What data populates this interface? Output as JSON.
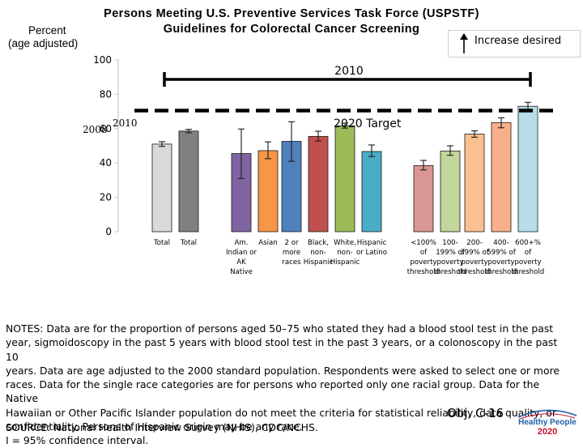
{
  "chart_data": {
    "type": "bar",
    "title": [
      "Persons Meeting U.S. Preventive Services Task Force (USPSTF)",
      "Guidelines for Colorectal Cancer Screening"
    ],
    "ylabel": [
      "Percent",
      "(age adjusted)"
    ],
    "ylim": [
      0,
      100
    ],
    "yticks": [
      "0",
      "20",
      "40",
      "60",
      "80",
      "100"
    ],
    "period_label": "2010",
    "target": {
      "value": 70.5,
      "label": "2020 Target"
    },
    "baseline_labels": {
      "year_a": "2008",
      "year_b": "2010"
    },
    "bars": [
      {
        "value": 51.0,
        "err": [
          49.7,
          52.4
        ],
        "color": "#d9d9d9",
        "label": [
          "Total"
        ]
      },
      {
        "value": 58.6,
        "err": [
          57.6,
          59.6
        ],
        "color": "#808080",
        "label": [
          "Total"
        ]
      },
      {
        "value": 45.5,
        "err": [
          31.0,
          59.8
        ],
        "color": "#8064a2",
        "label": [
          "Am.",
          "Indian or",
          "AK",
          "Native"
        ]
      },
      {
        "value": 47.2,
        "err": [
          42.5,
          52.3
        ],
        "color": "#f79646",
        "label": [
          "Asian"
        ]
      },
      {
        "value": 52.6,
        "err": [
          41.0,
          64.0
        ],
        "color": "#4f81bd",
        "label": [
          "2 or",
          "more",
          "races"
        ]
      },
      {
        "value": 55.5,
        "err": [
          52.8,
          58.5
        ],
        "color": "#c0504d",
        "label": [
          "Black,",
          "non-",
          "Hispanic"
        ]
      },
      {
        "value": 61.7,
        "err": [
          60.3,
          63.2
        ],
        "color": "#9bbb59",
        "label": [
          "White,",
          "non-",
          "Hispanic"
        ]
      },
      {
        "value": 46.7,
        "err": [
          43.8,
          50.5
        ],
        "color": "#4bacc6",
        "label": [
          "Hispanic",
          "or Latino"
        ]
      },
      {
        "value": 38.5,
        "err": [
          36.0,
          41.5
        ],
        "color": "#d99694",
        "label": [
          "<100%",
          "of",
          "poverty",
          "threshold"
        ]
      },
      {
        "value": 47.0,
        "err": [
          44.5,
          50.0
        ],
        "color": "#c3d69b",
        "label": [
          "100-",
          "199% of",
          "poverty",
          "threshold"
        ]
      },
      {
        "value": 56.8,
        "err": [
          55.0,
          58.7
        ],
        "color": "#fac090",
        "label": [
          "200-",
          "399% of",
          "poverty",
          "threshold"
        ]
      },
      {
        "value": 63.5,
        "err": [
          60.5,
          66.3
        ],
        "color": "#f9b08a",
        "label": [
          "400-",
          "599% of",
          "poverty",
          "threshold"
        ]
      },
      {
        "value": 73.0,
        "err": [
          70.5,
          75.3
        ],
        "color": "#b7dee8",
        "label": [
          "600+%",
          "of",
          "poverty",
          "threshold"
        ]
      }
    ],
    "grid": false,
    "legend": "none"
  },
  "indicator": {
    "text": "Increase desired"
  },
  "notes": [
    "NOTES: Data are for the proportion of persons aged 50–75 who stated they had a blood stool test in the past",
    "year, sigmoidoscopy in the past 5 years with blood stool test in the past 3 years, or a colonoscopy in the past 10",
    "years. Data are age adjusted to the 2000 standard population. Respondents were asked to select one or more",
    "races. Data for the single race categories are for persons who reported only one racial group. Data for the Native",
    "Hawaiian or Other Pacific Islander population do not meet the criteria for statistical reliability, data quality, or",
    "confidentiality. Persons of Hispanic origin may be any race.",
    "I = 95% confidence interval."
  ],
  "source": "SOURCE: National Health Interview Survey (NHIS), CDC/NCHS.",
  "objective": "Obj. C-16",
  "logo": {
    "line1": "Healthy People",
    "line2": "2020",
    "colors": {
      "blue": "#1f5fa8",
      "red": "#c8102e"
    }
  }
}
